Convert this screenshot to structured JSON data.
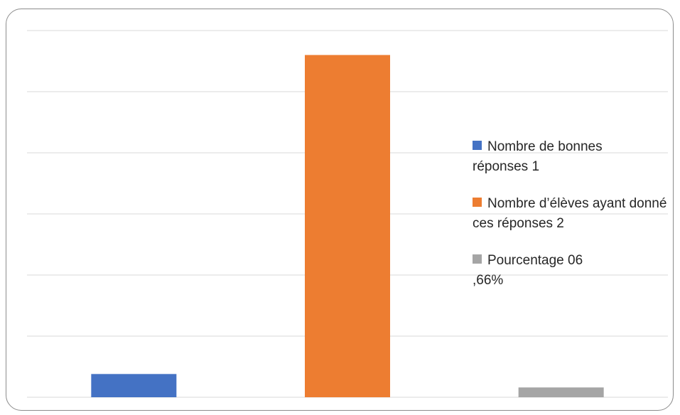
{
  "chart_data": {
    "type": "bar",
    "categories": [
      null
    ],
    "series": [
      {
        "name": "Nombre de bonnes réponses 1",
        "color": "#4472c4",
        "values": [
          0.38
        ]
      },
      {
        "name": "Nombre d’élèves ayant donné ces réponses 2",
        "color": "#ed7d31",
        "values": [
          5.6
        ]
      },
      {
        "name": "Pourcentage 06 ,66%",
        "color": "#a5a5a5",
        "values": [
          0.16
        ]
      }
    ],
    "ylim": [
      0,
      6
    ],
    "yticks": [
      0,
      1,
      2,
      3,
      4,
      5,
      6
    ],
    "grid": true,
    "legend": "right"
  }
}
